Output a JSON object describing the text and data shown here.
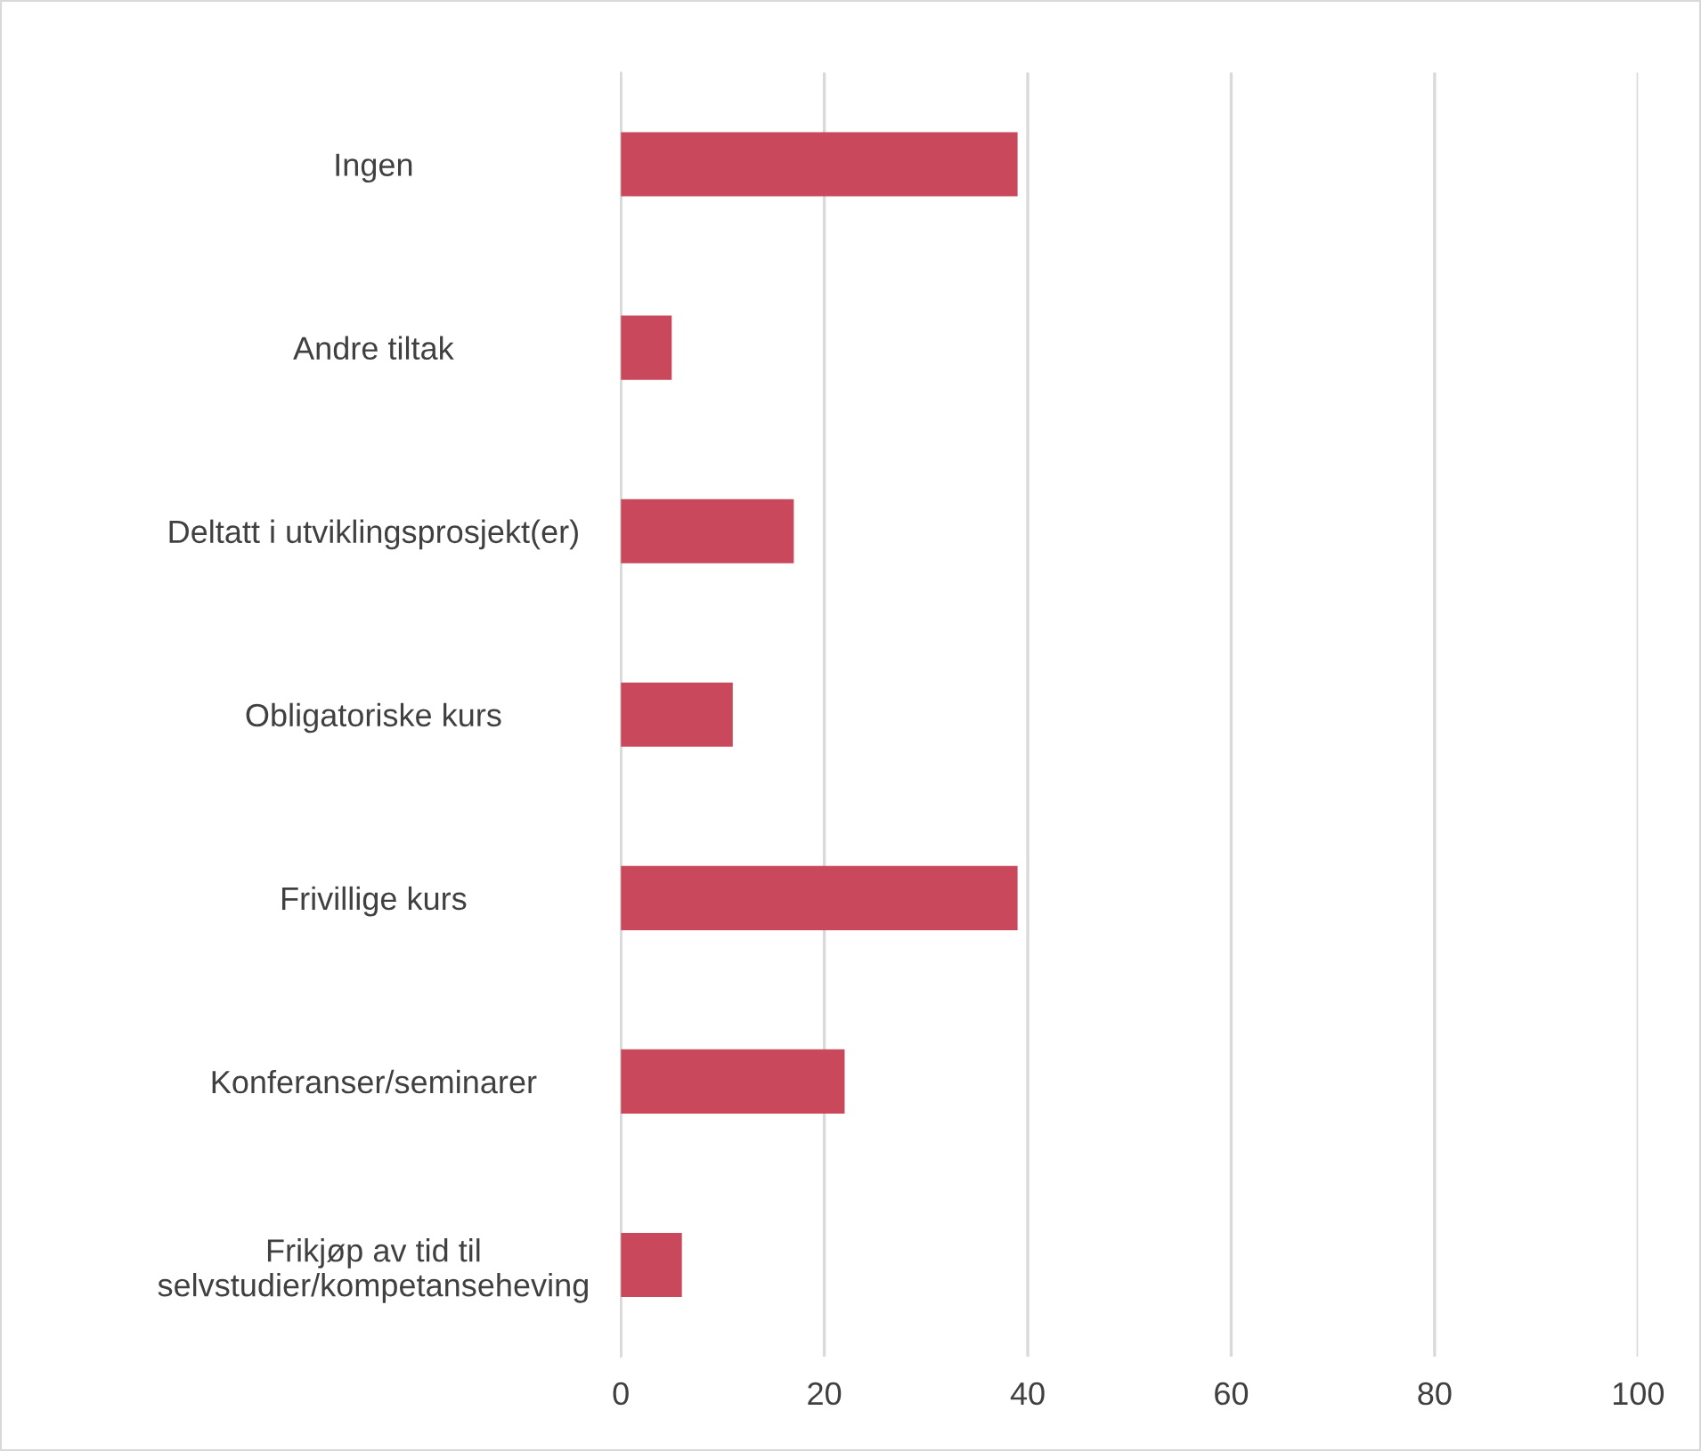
{
  "chart_data": {
    "type": "bar",
    "orientation": "horizontal",
    "categories": [
      "Ingen",
      "Andre tiltak",
      "Deltatt i utviklingsprosjekt(er)",
      "Obligatoriske kurs",
      "Frivillige kurs",
      "Konferanser/seminarer",
      "Frikjøp av tid til\nselvstudier/kompetanseheving"
    ],
    "values": [
      39,
      5,
      17,
      11,
      39,
      22,
      6
    ],
    "color": "#c9485b",
    "xlim": [
      0,
      100
    ],
    "xticks": [
      0,
      20,
      40,
      60,
      80,
      100
    ],
    "grid": "x",
    "legend": false
  }
}
